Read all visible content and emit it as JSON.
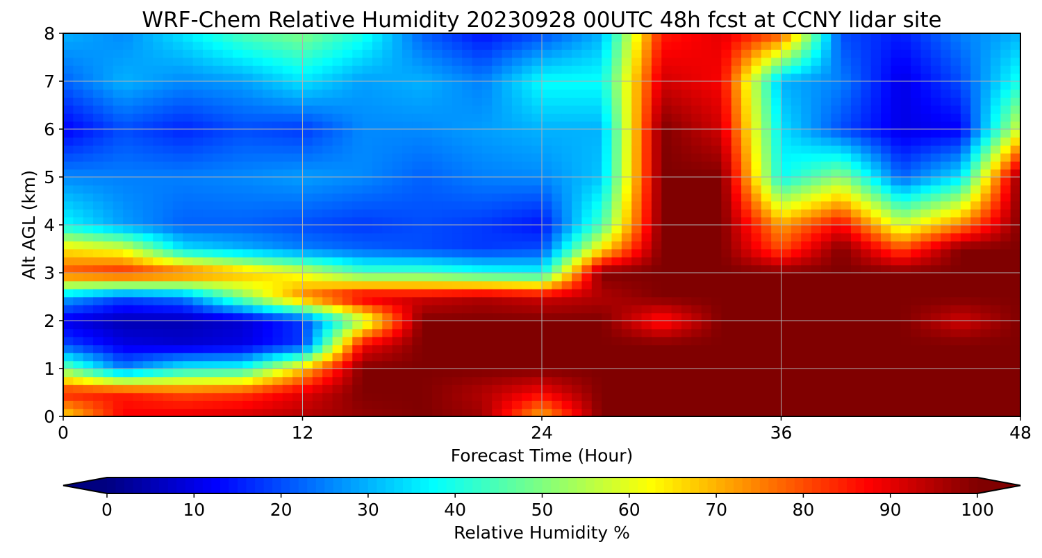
{
  "chart_data": {
    "type": "heatmap",
    "title": "WRF-Chem Relative Humidity 20230928 00UTC 48h fcst at CCNY lidar site",
    "xlabel": "Forecast Time (Hour)",
    "ylabel": "Alt AGL (km)",
    "xlim": [
      0,
      48
    ],
    "ylim": [
      0,
      8
    ],
    "x_ticks": [
      0,
      12,
      24,
      36,
      48
    ],
    "y_ticks": [
      0,
      1,
      2,
      3,
      4,
      5,
      6,
      7,
      8
    ],
    "grid": true,
    "colormap": "jet",
    "colorbar": {
      "label": "Relative Humidity %",
      "orientation": "horizontal",
      "extend": "both",
      "range": [
        0,
        100
      ],
      "ticks": [
        0,
        10,
        20,
        30,
        40,
        50,
        60,
        70,
        80,
        90,
        100
      ]
    },
    "x": [
      0,
      3,
      6,
      9,
      12,
      15,
      18,
      21,
      24,
      27,
      30,
      33,
      36,
      39,
      42,
      45,
      48
    ],
    "y": [
      0,
      0.5,
      1,
      1.5,
      2,
      2.5,
      3,
      3.5,
      4,
      5,
      6,
      7,
      8
    ],
    "z": [
      [
        65,
        88,
        90,
        92,
        95,
        98,
        100,
        97,
        70,
        100,
        100,
        100,
        100,
        100,
        100,
        100,
        100
      ],
      [
        85,
        85,
        80,
        82,
        90,
        100,
        100,
        95,
        88,
        100,
        100,
        100,
        100,
        100,
        100,
        100,
        100
      ],
      [
        50,
        25,
        38,
        40,
        68,
        100,
        100,
        100,
        100,
        100,
        100,
        100,
        100,
        100,
        100,
        100,
        100
      ],
      [
        20,
        10,
        8,
        10,
        18,
        88,
        100,
        100,
        100,
        100,
        100,
        100,
        100,
        100,
        100,
        100,
        100
      ],
      [
        10,
        5,
        5,
        8,
        18,
        55,
        100,
        100,
        100,
        100,
        85,
        100,
        100,
        100,
        100,
        92,
        100
      ],
      [
        30,
        20,
        25,
        50,
        75,
        92,
        92,
        95,
        92,
        95,
        100,
        100,
        100,
        100,
        100,
        100,
        100
      ],
      [
        80,
        85,
        80,
        70,
        60,
        45,
        45,
        40,
        38,
        100,
        100,
        100,
        100,
        100,
        100,
        100,
        100
      ],
      [
        65,
        60,
        35,
        30,
        25,
        22,
        20,
        18,
        20,
        65,
        100,
        100,
        80,
        100,
        80,
        100,
        100
      ],
      [
        38,
        28,
        22,
        22,
        20,
        18,
        20,
        18,
        14,
        45,
        100,
        100,
        72,
        88,
        58,
        75,
        100
      ],
      [
        26,
        25,
        25,
        26,
        28,
        26,
        22,
        25,
        26,
        32,
        100,
        100,
        38,
        52,
        22,
        35,
        100
      ],
      [
        12,
        20,
        16,
        20,
        18,
        26,
        26,
        28,
        30,
        30,
        100,
        92,
        35,
        20,
        10,
        12,
        60
      ],
      [
        22,
        30,
        26,
        28,
        35,
        28,
        30,
        25,
        38,
        38,
        92,
        88,
        30,
        25,
        10,
        20,
        40
      ],
      [
        30,
        26,
        35,
        45,
        50,
        40,
        22,
        14,
        20,
        30,
        85,
        90,
        80,
        20,
        15,
        25,
        30
      ]
    ]
  }
}
